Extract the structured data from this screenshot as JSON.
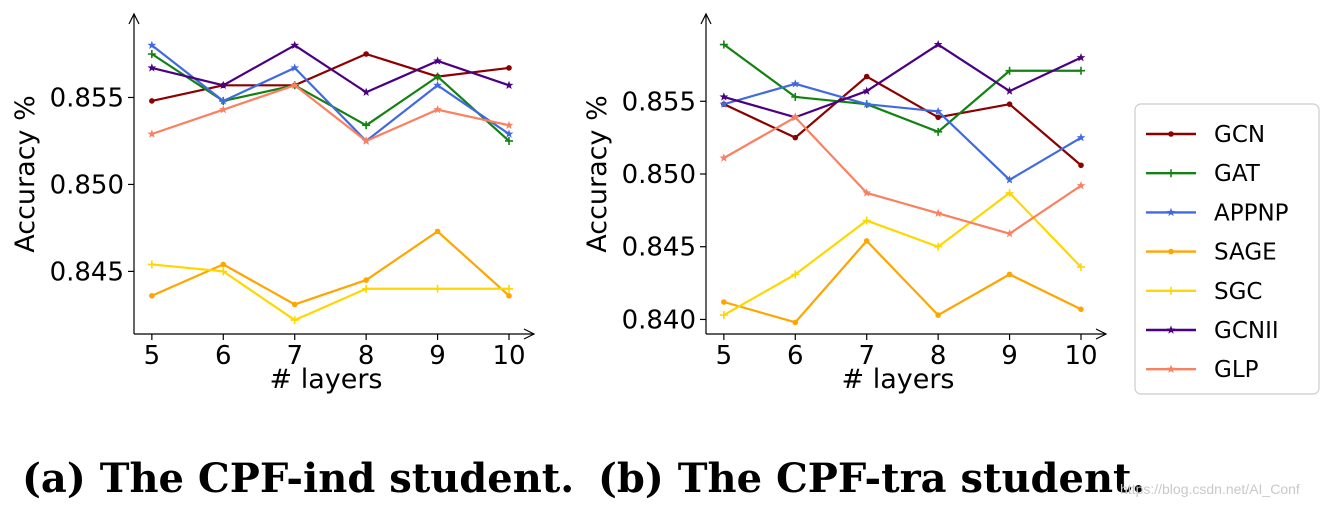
{
  "chart_data": [
    {
      "id": "a",
      "type": "line",
      "caption": "(a) The CPF-ind student.",
      "xlabel": "# layers",
      "ylabel": "Accuracy %",
      "x": [
        5,
        6,
        7,
        8,
        9,
        10
      ],
      "xlim": [
        4.75,
        10.35
      ],
      "ylim": [
        0.8414,
        0.8598
      ],
      "yticks": [
        0.845,
        0.85,
        0.855
      ],
      "ytick_labels": [
        "0.845",
        "0.850",
        "0.855"
      ],
      "grid": false,
      "series": [
        {
          "name": "GCN",
          "color": "#8b0000",
          "marker": "dot",
          "values": [
            0.8548,
            0.8557,
            0.8557,
            0.8575,
            0.8562,
            0.8567
          ]
        },
        {
          "name": "GAT",
          "color": "#128212",
          "marker": "plus",
          "values": [
            0.8575,
            0.8548,
            0.8557,
            0.8534,
            0.8562,
            0.8525
          ]
        },
        {
          "name": "APPNP",
          "color": "#4169e1",
          "marker": "star",
          "values": [
            0.858,
            0.8548,
            0.8567,
            0.8525,
            0.8557,
            0.8529
          ]
        },
        {
          "name": "SAGE",
          "color": "#ffa500",
          "marker": "dot",
          "values": [
            0.8436,
            0.8454,
            0.8431,
            0.8445,
            0.8473,
            0.8436
          ]
        },
        {
          "name": "SGC",
          "color": "#ffd700",
          "marker": "plus",
          "values": [
            0.8454,
            0.845,
            0.8422,
            0.844,
            0.844,
            0.844
          ]
        },
        {
          "name": "GCNII",
          "color": "#4b0082",
          "marker": "star",
          "values": [
            0.8567,
            0.8557,
            0.858,
            0.8553,
            0.8571,
            0.8557
          ]
        },
        {
          "name": "GLP",
          "color": "#fa8060",
          "marker": "star",
          "values": [
            0.8529,
            0.8543,
            0.8557,
            0.8525,
            0.8543,
            0.8534
          ]
        }
      ]
    },
    {
      "id": "b",
      "type": "line",
      "caption": "(b) The CPF-tra student.",
      "xlabel": "# layers",
      "ylabel": "Accuracy %",
      "x": [
        5,
        6,
        7,
        8,
        9,
        10
      ],
      "xlim": [
        4.75,
        10.35
      ],
      "ylim": [
        0.839,
        0.861
      ],
      "yticks": [
        0.84,
        0.845,
        0.85,
        0.855
      ],
      "ytick_labels": [
        "0.840",
        "0.845",
        "0.850",
        "0.855"
      ],
      "grid": false,
      "series": [
        {
          "name": "GCN",
          "color": "#8b0000",
          "marker": "dot",
          "values": [
            0.8548,
            0.8525,
            0.8567,
            0.8539,
            0.8548,
            0.8506
          ]
        },
        {
          "name": "GAT",
          "color": "#128212",
          "marker": "plus",
          "values": [
            0.8589,
            0.8553,
            0.8548,
            0.8529,
            0.8571,
            0.8571
          ]
        },
        {
          "name": "APPNP",
          "color": "#4169e1",
          "marker": "star",
          "values": [
            0.8548,
            0.8562,
            0.8548,
            0.8543,
            0.8496,
            0.8525
          ]
        },
        {
          "name": "SAGE",
          "color": "#ffa500",
          "marker": "dot",
          "values": [
            0.8412,
            0.8398,
            0.8454,
            0.8403,
            0.8431,
            0.8407
          ]
        },
        {
          "name": "SGC",
          "color": "#ffd700",
          "marker": "plus",
          "values": [
            0.8403,
            0.8431,
            0.8468,
            0.845,
            0.8487,
            0.8436
          ]
        },
        {
          "name": "GCNII",
          "color": "#4b0082",
          "marker": "star",
          "values": [
            0.8553,
            0.8539,
            0.8557,
            0.8589,
            0.8557,
            0.858
          ]
        },
        {
          "name": "GLP",
          "color": "#fa8060",
          "marker": "star",
          "values": [
            0.8511,
            0.8539,
            0.8487,
            0.8473,
            0.8459,
            0.8492
          ]
        }
      ]
    }
  ],
  "legend": {
    "placement": "right",
    "items": [
      {
        "label": "GCN",
        "color": "#8b0000",
        "marker": "dot"
      },
      {
        "label": "GAT",
        "color": "#128212",
        "marker": "plus"
      },
      {
        "label": "APPNP",
        "color": "#4169e1",
        "marker": "star"
      },
      {
        "label": "SAGE",
        "color": "#ffa500",
        "marker": "dot"
      },
      {
        "label": "SGC",
        "color": "#ffd700",
        "marker": "plus"
      },
      {
        "label": "GCNII",
        "color": "#4b0082",
        "marker": "star"
      },
      {
        "label": "GLP",
        "color": "#fa8060",
        "marker": "star"
      }
    ]
  },
  "watermark": "https://blog.csdn.net/AI_Conf"
}
